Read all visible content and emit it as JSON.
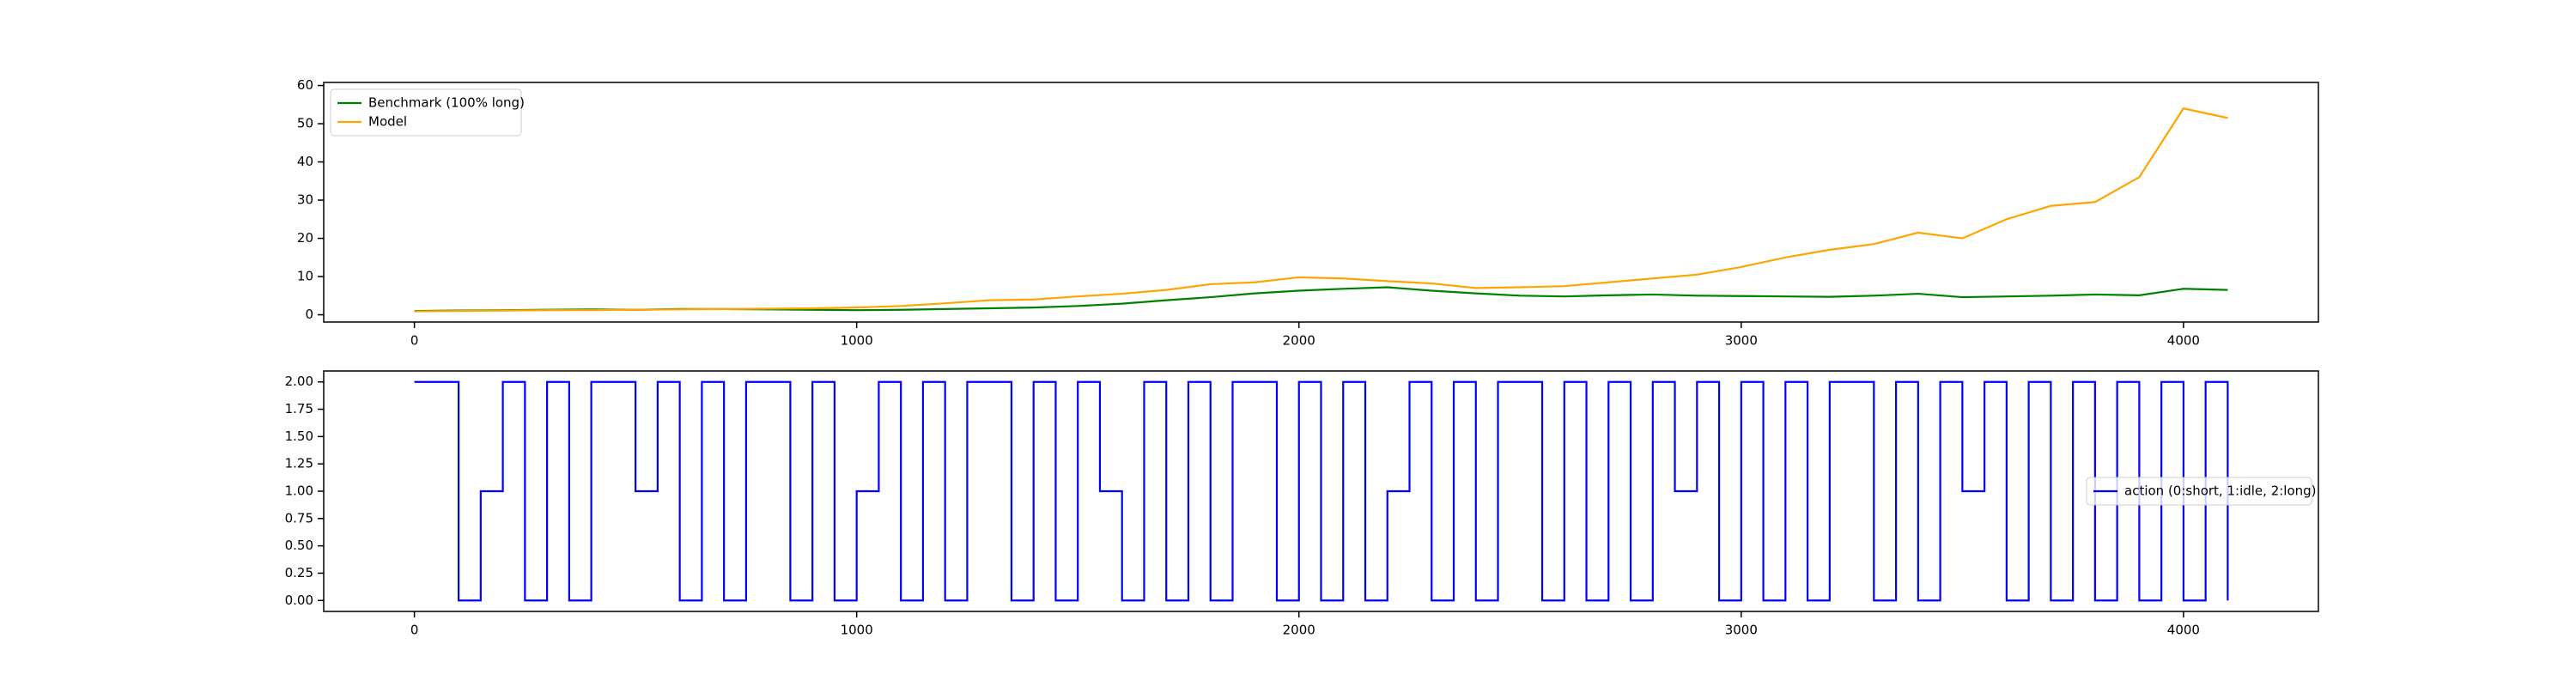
{
  "chart_data": [
    {
      "type": "line",
      "legend": "upper left",
      "x": [
        0,
        100,
        200,
        300,
        400,
        500,
        600,
        700,
        800,
        900,
        1000,
        1100,
        1200,
        1300,
        1400,
        1500,
        1600,
        1700,
        1800,
        1900,
        2000,
        2100,
        2200,
        2300,
        2400,
        2500,
        2600,
        2700,
        2800,
        2900,
        3000,
        3100,
        3200,
        3300,
        3400,
        3500,
        3600,
        3700,
        3800,
        3900,
        4000,
        4100
      ],
      "series": [
        {
          "name": "Benchmark (100% long)",
          "color": "#008000",
          "values": [
            1.0,
            1.1,
            1.2,
            1.3,
            1.4,
            1.3,
            1.5,
            1.5,
            1.4,
            1.3,
            1.2,
            1.3,
            1.5,
            1.7,
            1.9,
            2.3,
            2.9,
            3.8,
            4.6,
            5.6,
            6.3,
            6.8,
            7.2,
            6.3,
            5.6,
            5.0,
            4.8,
            5.1,
            5.3,
            5.0,
            4.9,
            4.8,
            4.7,
            5.0,
            5.5,
            4.6,
            4.8,
            5.0,
            5.3,
            5.1,
            6.8,
            6.5
          ]
        },
        {
          "name": "Model",
          "color": "#ffa500",
          "values": [
            0.9,
            1.0,
            1.1,
            1.2,
            1.2,
            1.3,
            1.4,
            1.5,
            1.6,
            1.7,
            1.9,
            2.3,
            3.0,
            3.8,
            4.0,
            4.8,
            5.5,
            6.5,
            8.0,
            8.5,
            9.8,
            9.5,
            8.8,
            8.2,
            7.0,
            7.2,
            7.5,
            8.5,
            9.5,
            10.5,
            12.5,
            15.0,
            17.0,
            18.5,
            21.5,
            20.0,
            25.0,
            28.5,
            29.5,
            36.0,
            54.0,
            51.5
          ]
        }
      ],
      "xlim": [
        -205,
        4305
      ],
      "xticks": [
        0,
        1000,
        2000,
        3000,
        4000
      ],
      "ylim": [
        -1.9,
        60.8
      ],
      "yticks": [
        0,
        10,
        20,
        30,
        40,
        50,
        60
      ]
    },
    {
      "type": "line",
      "step": true,
      "legend": "center right",
      "x": [
        0,
        50,
        100,
        150,
        200,
        250,
        300,
        350,
        400,
        450,
        500,
        550,
        600,
        650,
        700,
        750,
        800,
        850,
        900,
        950,
        1000,
        1050,
        1100,
        1150,
        1200,
        1250,
        1300,
        1350,
        1400,
        1450,
        1500,
        1550,
        1600,
        1650,
        1700,
        1750,
        1800,
        1850,
        1900,
        1950,
        2000,
        2050,
        2100,
        2150,
        2200,
        2250,
        2300,
        2350,
        2400,
        2450,
        2500,
        2550,
        2600,
        2650,
        2700,
        2750,
        2800,
        2850,
        2900,
        2950,
        3000,
        3050,
        3100,
        3150,
        3200,
        3250,
        3300,
        3350,
        3400,
        3450,
        3500,
        3550,
        3600,
        3650,
        3700,
        3750,
        3800,
        3850,
        3900,
        3950,
        4000,
        4050,
        4100
      ],
      "series": [
        {
          "name": "action (0:short, 1:idle, 2:long)",
          "color": "#0000ff",
          "values": [
            2,
            2,
            0,
            1,
            2,
            0,
            2,
            0,
            2,
            2,
            1,
            2,
            0,
            2,
            0,
            2,
            2,
            0,
            2,
            0,
            1,
            2,
            0,
            2,
            0,
            2,
            2,
            0,
            2,
            0,
            2,
            1,
            0,
            2,
            0,
            2,
            0,
            2,
            2,
            0,
            2,
            0,
            2,
            0,
            1,
            2,
            0,
            2,
            0,
            2,
            2,
            0,
            2,
            0,
            2,
            0,
            2,
            1,
            2,
            0,
            2,
            0,
            2,
            0,
            2,
            2,
            0,
            2,
            0,
            2,
            1,
            2,
            0,
            2,
            0,
            2,
            0,
            2,
            0,
            2,
            0,
            2,
            0
          ]
        }
      ],
      "xlim": [
        -205,
        4305
      ],
      "xticks": [
        0,
        1000,
        2000,
        3000,
        4000
      ],
      "ylim": [
        -0.1,
        2.1
      ],
      "yticks": [
        {
          "value": 0,
          "label": "0.00"
        },
        {
          "value": 0.25,
          "label": "0.25"
        },
        {
          "value": 0.5,
          "label": "0.50"
        },
        {
          "value": 0.75,
          "label": "0.75"
        },
        {
          "value": 1,
          "label": "1.00"
        },
        {
          "value": 1.25,
          "label": "1.25"
        },
        {
          "value": 1.5,
          "label": "1.50"
        },
        {
          "value": 1.75,
          "label": "1.75"
        },
        {
          "value": 2,
          "label": "2.00"
        }
      ]
    }
  ]
}
